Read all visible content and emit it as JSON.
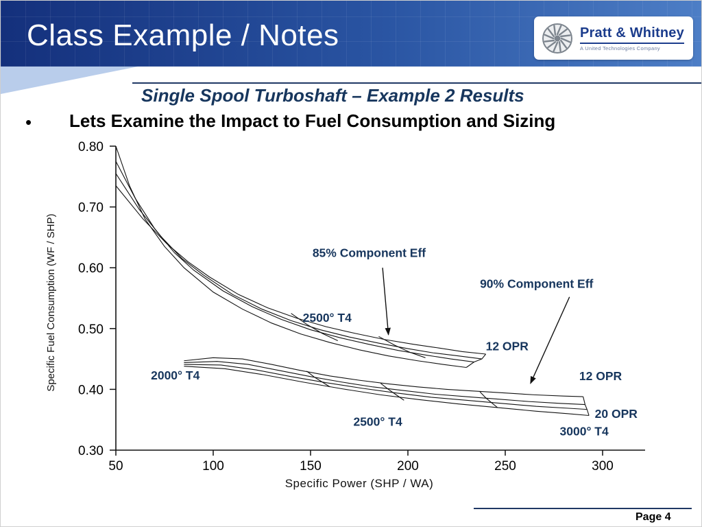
{
  "slide": {
    "title": "Class Example / Notes",
    "subtitle": "Single Spool Turboshaft – Example 2 Results",
    "bullet_marker": "•",
    "bullet": "Lets Examine the Impact to Fuel Consumption and Sizing",
    "page_label": "Page 4"
  },
  "logo": {
    "name": "Pratt & Whitney",
    "tagline": "A United Technologies Company"
  },
  "colors": {
    "header_dark": "#14307c",
    "header_light": "#4d7ec6",
    "wedge_blue": "#b9cdeb",
    "annotation_blue": "#17365d",
    "rule_navy": "#1f3864",
    "line_black": "#111111"
  },
  "chart_data": {
    "type": "line",
    "title": "",
    "xlabel": "Specific Power (SHP / WA)",
    "ylabel": "Specific Fuel Consumption (WF / SHP)",
    "xlim": [
      50,
      300
    ],
    "ylim": [
      0.3,
      0.8
    ],
    "xticks": [
      50,
      100,
      150,
      200,
      250,
      300
    ],
    "yticks": [
      0.3,
      0.4,
      0.5,
      0.6,
      0.7,
      0.8
    ],
    "grid": false,
    "legend": "none",
    "series": [
      {
        "name": "85pct-eff-opr-line-1",
        "points": [
          [
            50,
            0.8
          ],
          [
            57,
            0.735
          ],
          [
            65,
            0.68
          ],
          [
            75,
            0.635
          ],
          [
            85,
            0.6
          ],
          [
            100,
            0.56
          ],
          [
            115,
            0.532
          ],
          [
            130,
            0.509
          ],
          [
            145,
            0.491
          ],
          [
            160,
            0.477
          ],
          [
            175,
            0.465
          ],
          [
            190,
            0.455
          ],
          [
            205,
            0.447
          ],
          [
            218,
            0.441
          ],
          [
            230,
            0.436
          ]
        ]
      },
      {
        "name": "85pct-eff-opr-line-2",
        "points": [
          [
            50,
            0.775
          ],
          [
            60,
            0.714
          ],
          [
            70,
            0.664
          ],
          [
            80,
            0.625
          ],
          [
            90,
            0.596
          ],
          [
            105,
            0.562
          ],
          [
            120,
            0.536
          ],
          [
            135,
            0.515
          ],
          [
            150,
            0.498
          ],
          [
            165,
            0.485
          ],
          [
            180,
            0.474
          ],
          [
            195,
            0.464
          ],
          [
            210,
            0.456
          ],
          [
            222,
            0.45
          ],
          [
            234,
            0.445
          ]
        ]
      },
      {
        "name": "85pct-eff-opr-line-3",
        "points": [
          [
            50,
            0.755
          ],
          [
            62,
            0.696
          ],
          [
            73,
            0.652
          ],
          [
            84,
            0.615
          ],
          [
            95,
            0.588
          ],
          [
            110,
            0.556
          ],
          [
            125,
            0.532
          ],
          [
            140,
            0.513
          ],
          [
            155,
            0.498
          ],
          [
            170,
            0.486
          ],
          [
            185,
            0.476
          ],
          [
            200,
            0.467
          ],
          [
            213,
            0.46
          ],
          [
            226,
            0.455
          ],
          [
            238,
            0.45
          ]
        ]
      },
      {
        "name": "85pct-eff-opr-line-4",
        "points": [
          [
            50,
            0.735
          ],
          [
            64,
            0.68
          ],
          [
            76,
            0.64
          ],
          [
            87,
            0.61
          ],
          [
            98,
            0.585
          ],
          [
            113,
            0.556
          ],
          [
            128,
            0.534
          ],
          [
            143,
            0.517
          ],
          [
            158,
            0.503
          ],
          [
            173,
            0.492
          ],
          [
            188,
            0.482
          ],
          [
            203,
            0.474
          ],
          [
            216,
            0.468
          ],
          [
            228,
            0.462
          ],
          [
            240,
            0.458
          ]
        ]
      },
      {
        "name": "85pct-eff-cross-1",
        "points": [
          [
            140,
            0.525
          ],
          [
            148,
            0.507
          ],
          [
            156,
            0.492
          ],
          [
            164,
            0.48
          ]
        ]
      },
      {
        "name": "85pct-eff-cross-2",
        "points": [
          [
            185,
            0.487
          ],
          [
            193,
            0.473
          ],
          [
            201,
            0.461
          ],
          [
            209,
            0.452
          ]
        ]
      },
      {
        "name": "85pct-eff-end-cap",
        "points": [
          [
            230,
            0.436
          ],
          [
            234,
            0.445
          ],
          [
            238,
            0.45
          ],
          [
            240,
            0.458
          ]
        ]
      },
      {
        "name": "90pct-eff-opr-line-1",
        "points": [
          [
            85,
            0.447
          ],
          [
            100,
            0.452
          ],
          [
            115,
            0.45
          ],
          [
            130,
            0.441
          ],
          [
            145,
            0.431
          ],
          [
            160,
            0.422
          ],
          [
            175,
            0.415
          ],
          [
            190,
            0.409
          ],
          [
            205,
            0.404
          ],
          [
            220,
            0.4
          ],
          [
            235,
            0.397
          ],
          [
            250,
            0.394
          ],
          [
            265,
            0.391
          ],
          [
            280,
            0.389
          ],
          [
            290,
            0.388
          ]
        ]
      },
      {
        "name": "90pct-eff-opr-line-2",
        "points": [
          [
            85,
            0.444
          ],
          [
            102,
            0.446
          ],
          [
            118,
            0.441
          ],
          [
            134,
            0.431
          ],
          [
            150,
            0.421
          ],
          [
            166,
            0.412
          ],
          [
            182,
            0.404
          ],
          [
            198,
            0.398
          ],
          [
            214,
            0.392
          ],
          [
            230,
            0.388
          ],
          [
            246,
            0.384
          ],
          [
            262,
            0.38
          ],
          [
            278,
            0.377
          ],
          [
            291,
            0.375
          ]
        ]
      },
      {
        "name": "90pct-eff-opr-line-3",
        "points": [
          [
            85,
            0.441
          ],
          [
            104,
            0.44
          ],
          [
            122,
            0.432
          ],
          [
            140,
            0.421
          ],
          [
            158,
            0.411
          ],
          [
            176,
            0.402
          ],
          [
            194,
            0.394
          ],
          [
            212,
            0.387
          ],
          [
            230,
            0.382
          ],
          [
            248,
            0.377
          ],
          [
            266,
            0.372
          ],
          [
            282,
            0.369
          ],
          [
            292,
            0.367
          ]
        ]
      },
      {
        "name": "90pct-eff-opr-line-4",
        "points": [
          [
            85,
            0.438
          ],
          [
            106,
            0.434
          ],
          [
            126,
            0.424
          ],
          [
            146,
            0.412
          ],
          [
            166,
            0.401
          ],
          [
            186,
            0.391
          ],
          [
            206,
            0.383
          ],
          [
            226,
            0.376
          ],
          [
            246,
            0.37
          ],
          [
            266,
            0.364
          ],
          [
            282,
            0.36
          ],
          [
            293,
            0.357
          ]
        ]
      },
      {
        "name": "90pct-eff-cross-1",
        "points": [
          [
            148,
            0.43
          ],
          [
            152,
            0.42
          ],
          [
            156,
            0.412
          ],
          [
            160,
            0.404
          ]
        ]
      },
      {
        "name": "90pct-eff-cross-2",
        "points": [
          [
            186,
            0.41
          ],
          [
            190,
            0.4
          ],
          [
            194,
            0.391
          ],
          [
            198,
            0.382
          ]
        ]
      },
      {
        "name": "90pct-eff-cross-3",
        "points": [
          [
            237,
            0.396
          ],
          [
            240,
            0.386
          ],
          [
            243,
            0.378
          ],
          [
            246,
            0.37
          ]
        ]
      },
      {
        "name": "90pct-eff-end-cap",
        "points": [
          [
            290,
            0.388
          ],
          [
            291,
            0.375
          ],
          [
            292,
            0.367
          ],
          [
            293,
            0.357
          ]
        ]
      }
    ],
    "annotations": [
      {
        "text": "85% Component Eff",
        "x": 151,
        "y": 0.618,
        "arrow": {
          "x1": 187,
          "y1": 0.6,
          "x2": 190,
          "y2": 0.49
        }
      },
      {
        "text": "90% Component Eff",
        "x": 237,
        "y": 0.567,
        "arrow": {
          "x1": 283,
          "y1": 0.552,
          "x2": 263,
          "y2": 0.41
        }
      },
      {
        "text": "2500° T4",
        "x": 146,
        "y": 0.511
      },
      {
        "text": "12 OPR",
        "x": 240,
        "y": 0.464
      },
      {
        "text": "2000° T4",
        "x": 68,
        "y": 0.416
      },
      {
        "text": "12 OPR",
        "x": 288,
        "y": 0.415
      },
      {
        "text": "2500° T4",
        "x": 172,
        "y": 0.34
      },
      {
        "text": "20 OPR",
        "x": 296,
        "y": 0.353
      },
      {
        "text": "3000° T4",
        "x": 278,
        "y": 0.324
      }
    ]
  }
}
